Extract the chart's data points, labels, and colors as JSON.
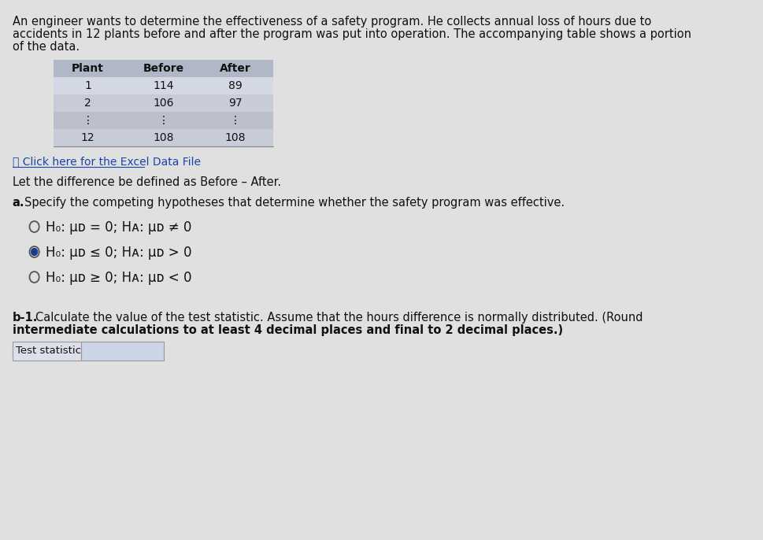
{
  "bg_color": "#e0e0e0",
  "title_text": "An engineer wants to determine the effectiveness of a safety program. He collects annual loss of hours due to\naccidents in 12 plants before and after the program was put into operation. The accompanying table shows a portion\nof the data.",
  "table_headers": [
    "Plant",
    "Before",
    "After"
  ],
  "table_rows": [
    [
      "1",
      "114",
      "89"
    ],
    [
      "2",
      "106",
      "97"
    ],
    [
      "⋮",
      "⋮",
      "⋮"
    ],
    [
      "12",
      "108",
      "108"
    ]
  ],
  "table_header_bg": "#b0b8c8",
  "table_row_bg1": "#d4d8e4",
  "table_row_bg2": "#c8ccd8",
  "table_dots_bg": "#bcc0cc",
  "table_last_bg": "#c8ccd8",
  "excel_link": "📄 Click here for the Excel Data File",
  "difference_text": "Let the difference be defined as Before – After.",
  "part_a_label": "a.",
  "part_a_text": "Specify the competing hypotheses that determine whether the safety program was effective.",
  "hypotheses": [
    {
      "selected": false,
      "text": "H₀: μᴅ = 0; Hᴀ: μᴅ ≠ 0"
    },
    {
      "selected": true,
      "text": "H₀: μᴅ ≤ 0; Hᴀ: μᴅ > 0"
    },
    {
      "selected": false,
      "text": "H₀: μᴅ ≥ 0; Hᴀ: μᴅ < 0"
    }
  ],
  "part_b_label": "b-1.",
  "part_b_line1": "Calculate the value of the test statistic. Assume that the hours difference is normally distributed. (Round",
  "part_b_line2": "intermediate calculations to at least 4 decimal places and final to 2 decimal places.)",
  "input_label": "Test statistic",
  "radio_selected_color": "#1a3a8a",
  "radio_outer_color": "#555555",
  "text_color": "#111111",
  "link_color": "#1a44aa",
  "bold_color": "#000000"
}
